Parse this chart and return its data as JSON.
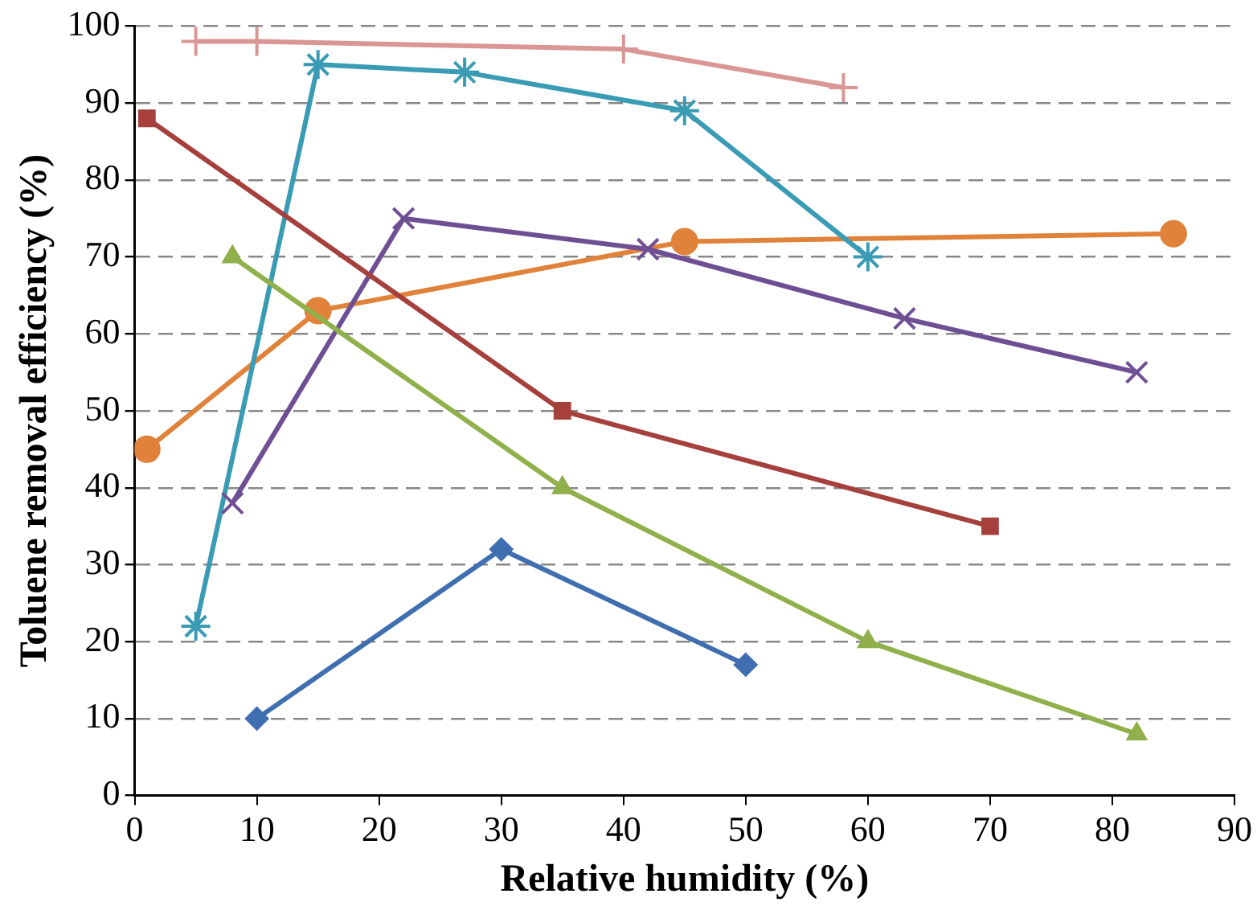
{
  "chart_data": {
    "type": "line",
    "xlabel": "Relative humidity (%)",
    "ylabel": "Toluene removal efficiency (%)",
    "xlim": [
      0,
      90
    ],
    "xticks": [
      0,
      10,
      20,
      30,
      40,
      50,
      60,
      70,
      80,
      90
    ],
    "ylim": [
      0,
      100
    ],
    "yticks": [
      0,
      10,
      20,
      30,
      40,
      50,
      60,
      70,
      80,
      90,
      100
    ],
    "grid": "y",
    "legend": false,
    "series": [
      {
        "color": "#3f6fb0",
        "marker": "diamond",
        "x": [
          10,
          30,
          50
        ],
        "values": [
          10,
          32,
          17
        ]
      },
      {
        "color": "#a5403c",
        "marker": "square",
        "x": [
          1,
          35,
          70
        ],
        "values": [
          88,
          50,
          35
        ]
      },
      {
        "color": "#8fb04a",
        "marker": "triangle",
        "x": [
          8,
          35,
          60,
          82
        ],
        "values": [
          70,
          40,
          20,
          8
        ]
      },
      {
        "color": "#6f4f94",
        "marker": "cross",
        "x": [
          8,
          22,
          42,
          63,
          82
        ],
        "values": [
          38,
          75,
          71,
          62,
          55
        ]
      },
      {
        "color": "#3a9bb5",
        "marker": "cross",
        "x": [
          5,
          15,
          27,
          45,
          60
        ],
        "values": [
          22,
          95,
          94,
          89,
          70
        ]
      },
      {
        "color": "#e0823a",
        "marker": "circle",
        "x": [
          1,
          15,
          45,
          85
        ],
        "values": [
          45,
          63,
          72,
          73
        ]
      },
      {
        "color": "#d99694",
        "marker": "cross",
        "x": [
          5,
          10,
          40,
          58
        ],
        "values": [
          98,
          98,
          97,
          92
        ]
      }
    ]
  }
}
